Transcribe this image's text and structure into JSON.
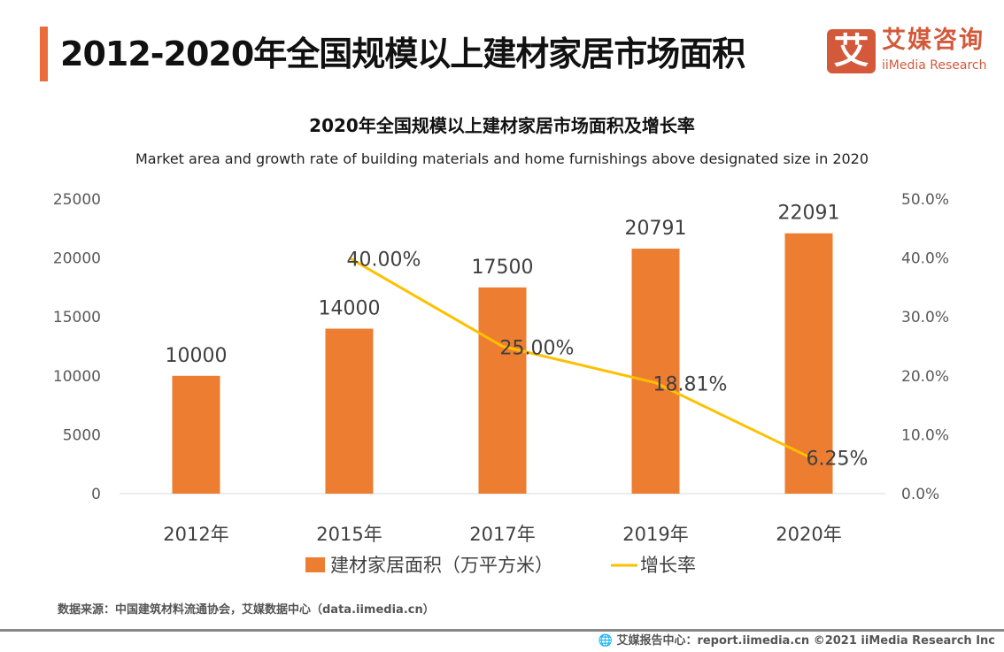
{
  "header": {
    "title": "2012-2020年全国规模以上建材家居市场面积",
    "logo_mark": "艾",
    "logo_cn": "艾媒咨询",
    "logo_en": "iiMedia Research"
  },
  "chart_data": {
    "type": "bar+line",
    "title": "2020年全国规模以上建材家居市场面积及增长率",
    "subtitle": "Market area and growth rate of building materials and home furnishings above designated size in 2020",
    "categories": [
      "2012年",
      "2015年",
      "2017年",
      "2019年",
      "2020年"
    ],
    "series": [
      {
        "name": "建材家居面积（万平方米）",
        "type": "bar",
        "axis": "left",
        "color": "#ed7d31",
        "values": [
          10000,
          14000,
          17500,
          20791,
          22091
        ],
        "labels": [
          "10000",
          "14000",
          "17500",
          "20791",
          "22091"
        ]
      },
      {
        "name": "增长率",
        "type": "line",
        "axis": "right",
        "color": "#ffc000",
        "values": [
          null,
          40.0,
          25.0,
          18.81,
          6.25
        ],
        "labels": [
          "",
          "40.00%",
          "25.00%",
          "18.81%",
          "6.25%"
        ]
      }
    ],
    "y_left": {
      "range": [
        0,
        25000
      ],
      "ticks": [
        "0",
        "5000",
        "10000",
        "15000",
        "20000",
        "25000"
      ]
    },
    "y_right": {
      "range": [
        0,
        50
      ],
      "ticks": [
        "0.0%",
        "10.0%",
        "20.0%",
        "30.0%",
        "40.0%",
        "50.0%"
      ]
    },
    "grid": false,
    "legend": "bottom"
  },
  "footer": {
    "source": "数据来源：中国建筑材料流通协会，艾媒数据中心（data.iimedia.cn）",
    "credit": "艾媒报告中心：report.iimedia.cn  ©2021  iiMedia Research  Inc",
    "globe_icon": "globe-icon"
  }
}
